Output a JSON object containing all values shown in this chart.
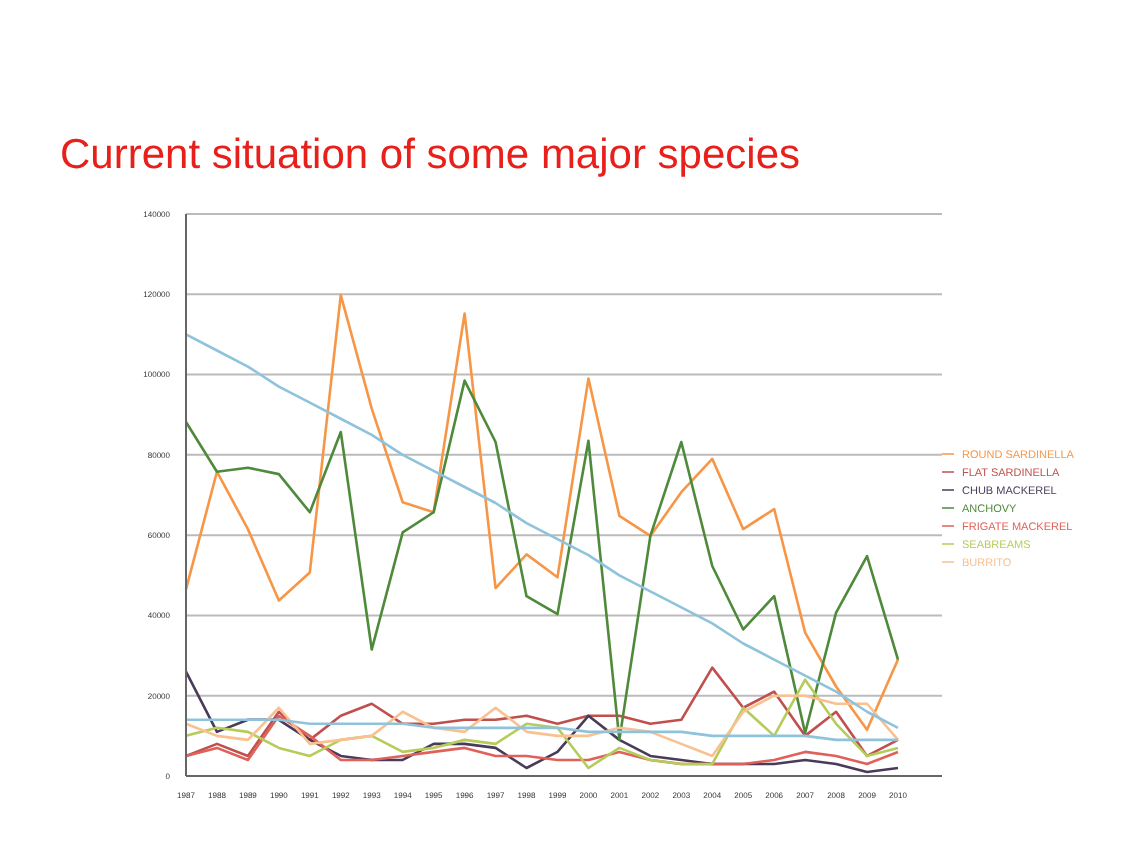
{
  "chart_data": {
    "type": "line",
    "title": "Current situation of some major species",
    "categories": [
      "1987",
      "1988",
      "1989",
      "1990",
      "1991",
      "1992",
      "1993",
      "1994",
      "1995",
      "1996",
      "1997",
      "1998",
      "1999",
      "2000",
      "2001",
      "2002",
      "2003",
      "2004",
      "2005",
      "2006",
      "2007",
      "2008",
      "2009",
      "2010"
    ],
    "series": [
      {
        "name": "ROUND SARDINELLA",
        "color": "#f79646",
        "values": [
          46500,
          75800,
          61500,
          43700,
          50700,
          119800,
          91500,
          68200,
          65700,
          115200,
          46800,
          55200,
          49500,
          99000,
          64800,
          59800,
          70700,
          79000,
          61500,
          66500,
          35700,
          22300,
          11500,
          29000
        ]
      },
      {
        "name": "FLAT SARDINELLA",
        "color": "#c0504d",
        "values": [
          5000,
          8000,
          5000,
          16000,
          9000,
          15000,
          18000,
          13000,
          13000,
          14000,
          14000,
          15000,
          13000,
          15000,
          15000,
          13000,
          14000,
          27000,
          17000,
          21000,
          10000,
          16000,
          5000,
          9000
        ]
      },
      {
        "name": "CHUB MACKEREL",
        "color": "#4b3b5b",
        "values": [
          26000,
          11000,
          14000,
          14000,
          9000,
          5000,
          4000,
          4000,
          8000,
          8000,
          7000,
          2000,
          6000,
          15000,
          9000,
          5000,
          4000,
          3000,
          3000,
          3000,
          4000,
          3000,
          1000,
          2000
        ]
      },
      {
        "name": "ANCHOVY",
        "color": "#4f8a3c",
        "values": [
          88200,
          75800,
          76800,
          75200,
          65700,
          85700,
          31500,
          60700,
          65700,
          98500,
          83200,
          44800,
          40300,
          83500,
          9000,
          59800,
          83200,
          52300,
          36500,
          44800,
          10700,
          40700,
          54800,
          29000
        ]
      },
      {
        "name": "FRIGATE MACKEREL",
        "color": "#e0605a",
        "values": [
          5000,
          7000,
          4000,
          15000,
          10000,
          4000,
          4000,
          5000,
          6000,
          7000,
          5000,
          5000,
          4000,
          4000,
          6000,
          4000,
          3000,
          3000,
          3000,
          4000,
          6000,
          5000,
          3000,
          6000
        ]
      },
      {
        "name": "SEABREAMS",
        "color": "#b5cc5a",
        "values": [
          10000,
          12000,
          11000,
          7000,
          5000,
          9000,
          10000,
          6000,
          7000,
          9000,
          8000,
          13000,
          12000,
          2000,
          7000,
          4000,
          3000,
          3000,
          17000,
          10000,
          24000,
          13000,
          5000,
          7000
        ]
      },
      {
        "name": "BURRITO",
        "color": "#fac090",
        "values": [
          13000,
          10000,
          9000,
          17000,
          8000,
          9000,
          10000,
          16000,
          12000,
          11000,
          17000,
          11000,
          10000,
          10000,
          12000,
          11000,
          8000,
          5000,
          16000,
          20000,
          20000,
          18000,
          18000,
          9000
        ]
      },
      {
        "color": "#8fc3dc",
        "values": [
          110000,
          106000,
          102000,
          97000,
          93000,
          89000,
          85000,
          80000,
          76000,
          72000,
          68000,
          63000,
          59000,
          55000,
          50000,
          46000,
          42000,
          38000,
          33000,
          29000,
          25000,
          21000,
          16000,
          12000
        ]
      },
      {
        "color": "#8fc3dc",
        "values": [
          14000,
          14000,
          14000,
          14000,
          13000,
          13000,
          13000,
          13000,
          12000,
          12000,
          12000,
          12000,
          12000,
          11000,
          11000,
          11000,
          11000,
          10000,
          10000,
          10000,
          10000,
          9000,
          9000,
          9000
        ]
      }
    ],
    "ylim": [
      0,
      140000
    ],
    "yticks": [
      0,
      20000,
      40000,
      60000,
      80000,
      100000,
      120000,
      140000
    ],
    "grid": "y",
    "legend": "right",
    "marker": "none",
    "line_style": "solid"
  }
}
